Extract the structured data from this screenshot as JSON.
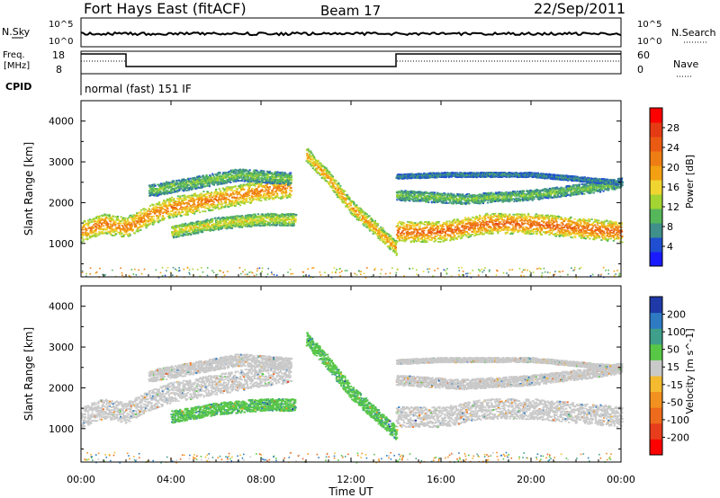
{
  "header": {
    "station": "Fort Hays East (fitACF)",
    "beam": "Beam 17",
    "date": "22/Sep/2011"
  },
  "noise_panel": {
    "left_label": "N.Sky",
    "right_label": "N.Search",
    "left_ticks": [
      "10^5",
      "10^0"
    ],
    "right_ticks": [
      "10^5",
      "10^0"
    ],
    "sky_level": 0.45
  },
  "freq_panel": {
    "left_label_line1": "Freq.",
    "left_label_line2": "[MHz]",
    "right_label": "Nave",
    "left_ticks": [
      "18",
      "8"
    ],
    "right_ticks": [
      "60",
      "0"
    ],
    "freq_high_segments": [
      [
        0,
        2.0
      ],
      [
        14.0,
        24.0
      ]
    ],
    "cpid_label": "CPID",
    "mode_text": "normal (fast) 151 IF"
  },
  "x_axis": {
    "title": "Time UT",
    "ticks": [
      "00:00",
      "04:00",
      "08:00",
      "12:00",
      "16:00",
      "20:00",
      "00:00"
    ],
    "range_hours": [
      0,
      24
    ]
  },
  "y_axis": {
    "title": "Slant Range [km]",
    "ticks": [
      "1000",
      "2000",
      "3000",
      "4000"
    ],
    "range_km": [
      180,
      4500
    ]
  },
  "power_colorbar": {
    "title": "Power [dB]",
    "labels": [
      "4",
      "8",
      "12",
      "16",
      "20",
      "24",
      "28"
    ],
    "colors": [
      "#1a1aff",
      "#1f4fd0",
      "#3f8f8a",
      "#55b75a",
      "#a3d432",
      "#f0d530",
      "#f3a012",
      "#ee7d14",
      "#ea5a12",
      "#e53b14",
      "#ff0000"
    ]
  },
  "velocity_colorbar": {
    "title": "Velocity [m s^-1]",
    "labels": [
      "200",
      "100",
      "50",
      "15",
      "-15",
      "-50",
      "-100",
      "-200"
    ],
    "colors": [
      "#1f3aa8",
      "#2e7ac3",
      "#3f9f8b",
      "#58c746",
      "#c9c9c9",
      "#f4ba30",
      "#f29020",
      "#ee6a1c",
      "#e83d1c",
      "#ff0000"
    ]
  },
  "chart_data": [
    {
      "type": "heatmap",
      "title": "Power",
      "xlabel": "Time UT",
      "ylabel": "Slant Range [km]",
      "x_unit": "hours UT",
      "xlim": [
        0,
        24
      ],
      "ylim": [
        180,
        4500
      ],
      "colorbar": {
        "label": "Power [dB]",
        "ticks": [
          4,
          8,
          12,
          16,
          20,
          24,
          28
        ]
      },
      "scatter_bands": [
        {
          "name": "main-trace",
          "t": [
            0,
            1,
            2,
            3,
            4,
            6,
            8,
            9.3
          ],
          "range_km": [
            1300,
            1500,
            1400,
            1700,
            1900,
            2100,
            2300,
            2400
          ],
          "width_km": 500,
          "power_db": 20
        },
        {
          "name": "upper-band",
          "t": [
            3,
            5,
            7,
            9.3
          ],
          "range_km": [
            2300,
            2500,
            2700,
            2600
          ],
          "width_km": 300,
          "power_db": 10
        },
        {
          "name": "lower-band",
          "t": [
            4,
            6,
            8,
            9.5
          ],
          "range_km": [
            1300,
            1500,
            1600,
            1600
          ],
          "width_km": 300,
          "power_db": 14
        },
        {
          "name": "descending-trace",
          "t": [
            10,
            11,
            12,
            13,
            14
          ],
          "range_km": [
            3200,
            2600,
            1900,
            1400,
            900
          ],
          "width_km": 350,
          "power_db": 18
        },
        {
          "name": "afternoon-band",
          "t": [
            14,
            16,
            18,
            20,
            22,
            24
          ],
          "range_km": [
            1300,
            1300,
            1500,
            1500,
            1400,
            1300
          ],
          "width_km": 500,
          "power_db": 22
        },
        {
          "name": "afternoon-upper",
          "t": [
            14,
            17,
            20,
            23,
            24
          ],
          "range_km": [
            2200,
            2100,
            2200,
            2400,
            2500
          ],
          "width_km": 250,
          "power_db": 10
        },
        {
          "name": "far-range",
          "t": [
            14,
            16,
            20,
            22,
            24
          ],
          "range_km": [
            2650,
            2700,
            2700,
            2600,
            2500
          ],
          "width_km": 120,
          "power_db": 6
        }
      ]
    },
    {
      "type": "heatmap",
      "title": "Velocity",
      "xlabel": "Time UT",
      "ylabel": "Slant Range [km]",
      "x_unit": "hours UT",
      "xlim": [
        0,
        24
      ],
      "ylim": [
        180,
        4500
      ],
      "colorbar": {
        "label": "Velocity [m s^-1]",
        "ticks": [
          200,
          100,
          50,
          15,
          -15,
          -50,
          -100,
          -200
        ]
      },
      "scatter_bands": [
        {
          "name": "main-trace",
          "t": [
            0,
            1,
            2,
            3,
            4,
            6,
            8,
            9.3
          ],
          "range_km": [
            1300,
            1500,
            1400,
            1700,
            1900,
            2100,
            2300,
            2400
          ],
          "width_km": 500,
          "velocity": 0
        },
        {
          "name": "upper-band",
          "t": [
            3,
            5,
            7,
            9.3
          ],
          "range_km": [
            2300,
            2500,
            2700,
            2600
          ],
          "width_km": 300,
          "velocity": 0
        },
        {
          "name": "lower-band",
          "t": [
            4,
            6,
            8,
            9.5
          ],
          "range_km": [
            1300,
            1500,
            1600,
            1600
          ],
          "width_km": 300,
          "velocity": 40
        },
        {
          "name": "descending-trace",
          "t": [
            10,
            11,
            12,
            13,
            14
          ],
          "range_km": [
            3200,
            2600,
            1900,
            1400,
            900
          ],
          "width_km": 350,
          "velocity": 40
        },
        {
          "name": "afternoon-band",
          "t": [
            14,
            16,
            18,
            20,
            22,
            24
          ],
          "range_km": [
            1300,
            1300,
            1500,
            1500,
            1400,
            1300
          ],
          "width_km": 500,
          "velocity": 0
        },
        {
          "name": "afternoon-upper",
          "t": [
            14,
            17,
            20,
            23,
            24
          ],
          "range_km": [
            2200,
            2100,
            2200,
            2400,
            2500
          ],
          "width_km": 250,
          "velocity": 0
        },
        {
          "name": "far-range",
          "t": [
            14,
            16,
            20,
            22,
            24
          ],
          "range_km": [
            2650,
            2700,
            2700,
            2600,
            2500
          ],
          "width_km": 120,
          "velocity": 0
        }
      ]
    }
  ]
}
